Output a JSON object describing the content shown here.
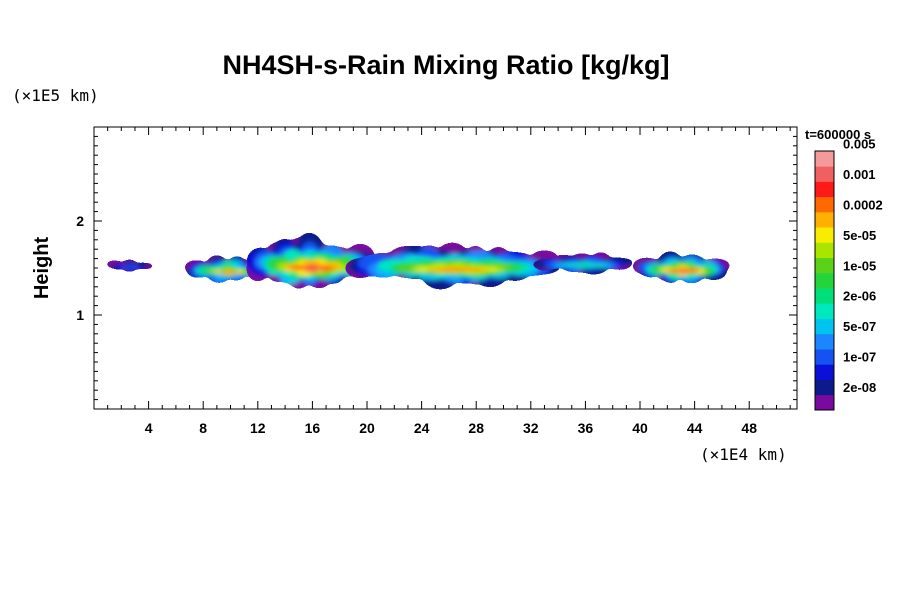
{
  "chart_data": {
    "type": "heatmap",
    "title": "NH4SH-s-Rain Mixing Ratio [kg/kg]",
    "xlabel": "",
    "ylabel": "Height",
    "x_unit": "(×1E4 km)",
    "y_unit": "(×1E5 km)",
    "xlim": [
      0,
      51.5
    ],
    "ylim": [
      0,
      3
    ],
    "x_ticks": [
      4,
      8,
      12,
      16,
      20,
      24,
      28,
      32,
      36,
      40,
      44,
      48
    ],
    "x_tick_labels": [
      "4",
      "8",
      "12",
      "16",
      "20",
      "24",
      "28",
      "32",
      "36",
      "40",
      "44",
      "48"
    ],
    "y_ticks": [
      1,
      2
    ],
    "y_tick_labels": [
      "1",
      "2"
    ],
    "time_label": "t=600000 s",
    "colorbar": {
      "colors": [
        "#7a0a9e",
        "#0d1a8c",
        "#0a10d8",
        "#1552f0",
        "#1a86ff",
        "#00c4ef",
        "#00e8c0",
        "#00e07a",
        "#25d43a",
        "#5ad21a",
        "#a8e600",
        "#f8ec00",
        "#ffb000",
        "#ff6a00",
        "#ff1a1a",
        "#f06060",
        "#f49a9a"
      ],
      "labels": [
        "2e-08",
        "1e-07",
        "5e-07",
        "2e-06",
        "1e-05",
        "5e-05",
        "0.0002",
        "0.001",
        "0.005"
      ]
    },
    "regions": [
      {
        "x": [
          1.5,
          3.7
        ],
        "y": [
          1.45,
          1.6
        ],
        "peak": "1e-07"
      },
      {
        "x": [
          7.5,
          12.0
        ],
        "y": [
          1.35,
          1.62
        ],
        "peak": "0.0002"
      },
      {
        "x": [
          12.0,
          19.5
        ],
        "y": [
          1.3,
          1.8
        ],
        "peak": "0.001"
      },
      {
        "x": [
          19.5,
          33.0
        ],
        "y": [
          1.33,
          1.72
        ],
        "peak": "0.0002"
      },
      {
        "x": [
          33.0,
          38.5
        ],
        "y": [
          1.45,
          1.65
        ],
        "peak": "2e-06"
      },
      {
        "x": [
          40.5,
          45.5
        ],
        "y": [
          1.35,
          1.65
        ],
        "peak": "0.001"
      }
    ]
  }
}
